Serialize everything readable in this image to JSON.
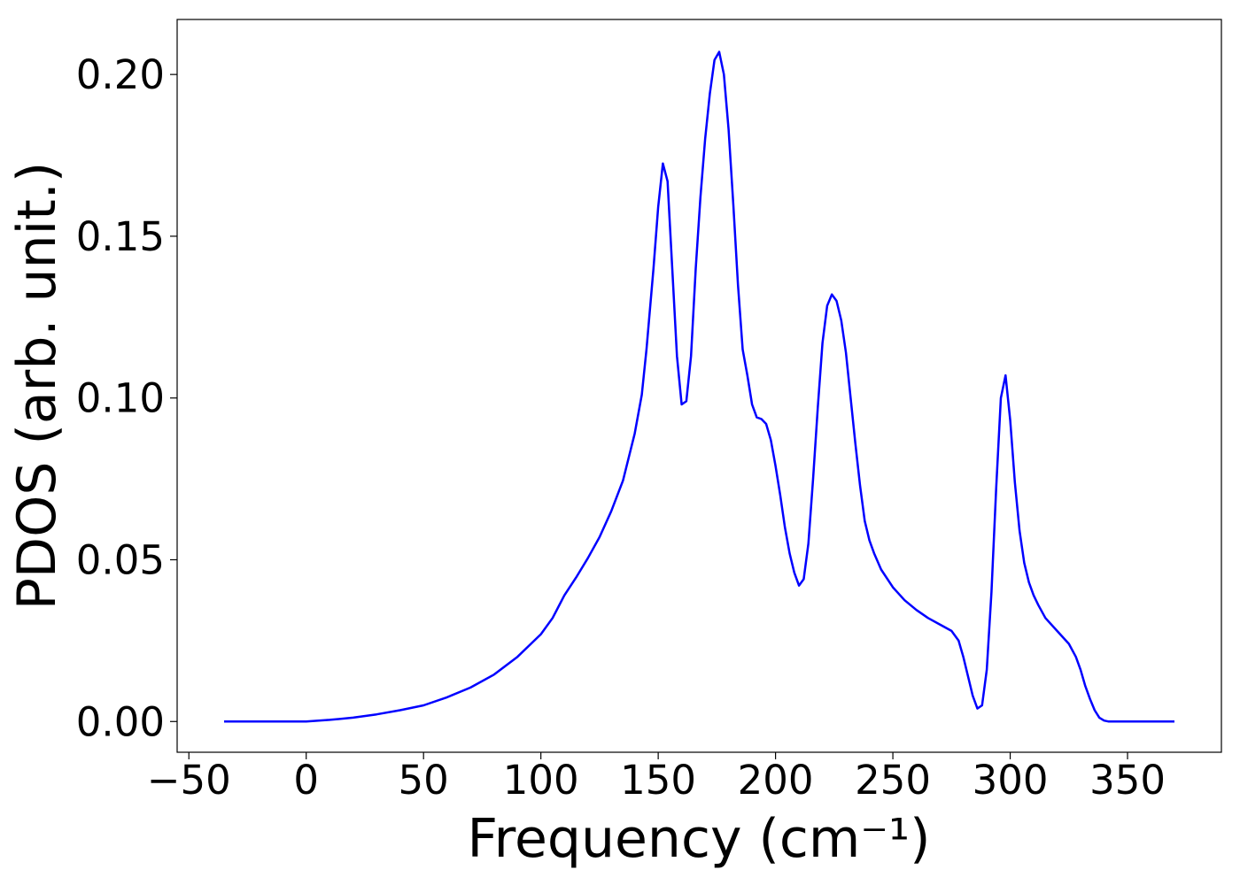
{
  "chart_data": {
    "type": "line",
    "xlabel": "Frequency (cm⁻¹)",
    "ylabel": "PDOS (arb. unit.)",
    "xlim": [
      -55,
      390
    ],
    "ylim": [
      -0.0095,
      0.217
    ],
    "xticks": [
      -50,
      0,
      50,
      100,
      150,
      200,
      250,
      300,
      350
    ],
    "xtick_labels": [
      "−50",
      "0",
      "50",
      "100",
      "150",
      "200",
      "250",
      "300",
      "350"
    ],
    "yticks": [
      0.0,
      0.05,
      0.1,
      0.15,
      0.2
    ],
    "ytick_labels": [
      "0.00",
      "0.05",
      "0.10",
      "0.15",
      "0.20"
    ],
    "grid": false,
    "series": [
      {
        "color": "#0000ff",
        "x": [
          -35,
          0,
          10,
          20,
          30,
          40,
          50,
          60,
          70,
          80,
          90,
          100,
          105,
          110,
          115,
          120,
          125,
          130,
          135,
          140,
          143,
          145,
          148,
          150,
          152,
          154,
          156,
          158,
          160,
          162,
          164,
          166,
          168,
          170,
          172,
          174,
          176,
          178,
          180,
          182,
          184,
          186,
          188,
          190,
          192,
          194,
          196,
          198,
          200,
          202,
          204,
          206,
          208,
          210,
          212,
          214,
          216,
          218,
          220,
          222,
          224,
          226,
          228,
          230,
          232,
          234,
          236,
          238,
          240,
          242,
          245,
          250,
          255,
          260,
          265,
          270,
          275,
          278,
          280,
          282,
          284,
          286,
          288,
          290,
          292,
          294,
          296,
          298,
          300,
          302,
          304,
          306,
          308,
          310,
          312,
          315,
          320,
          325,
          328,
          330,
          332,
          334,
          336,
          338,
          340,
          342,
          345,
          350,
          360,
          370
        ],
        "y": [
          0.0,
          0.0,
          0.0005,
          0.0012,
          0.0022,
          0.0035,
          0.005,
          0.0075,
          0.0105,
          0.0145,
          0.02,
          0.027,
          0.032,
          0.039,
          0.0445,
          0.0505,
          0.057,
          0.065,
          0.0745,
          0.089,
          0.101,
          0.115,
          0.14,
          0.159,
          0.1725,
          0.167,
          0.14,
          0.113,
          0.098,
          0.099,
          0.113,
          0.14,
          0.162,
          0.18,
          0.194,
          0.2045,
          0.207,
          0.2,
          0.183,
          0.16,
          0.135,
          0.115,
          0.107,
          0.098,
          0.094,
          0.0935,
          0.092,
          0.087,
          0.079,
          0.07,
          0.06,
          0.052,
          0.046,
          0.042,
          0.044,
          0.055,
          0.075,
          0.097,
          0.117,
          0.1285,
          0.132,
          0.13,
          0.124,
          0.114,
          0.1,
          0.086,
          0.073,
          0.062,
          0.056,
          0.052,
          0.047,
          0.0415,
          0.0375,
          0.0345,
          0.032,
          0.03,
          0.028,
          0.025,
          0.02,
          0.014,
          0.008,
          0.004,
          0.005,
          0.016,
          0.04,
          0.072,
          0.1,
          0.107,
          0.093,
          0.074,
          0.059,
          0.049,
          0.043,
          0.039,
          0.036,
          0.032,
          0.028,
          0.024,
          0.02,
          0.016,
          0.011,
          0.007,
          0.0035,
          0.0012,
          0.0003,
          0.0,
          0.0,
          0.0,
          0.0,
          0.0
        ]
      }
    ]
  }
}
